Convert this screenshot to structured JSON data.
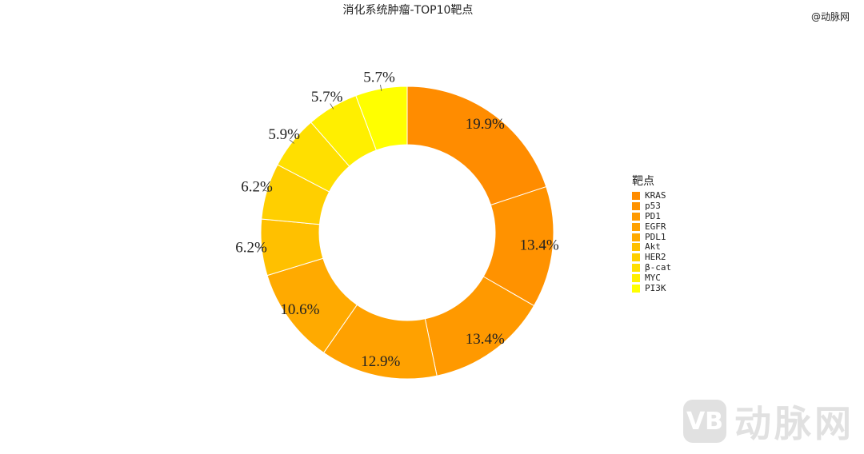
{
  "corner_mark": "@动脉网",
  "watermark": {
    "logo": "VB",
    "text": "动脉网"
  },
  "chart_data": {
    "type": "pie",
    "donut": true,
    "title": "消化系统肿瘤-TOP10靶点",
    "legend_title": "靶点",
    "legend_position": "right",
    "categories": [
      "KRAS",
      "p53",
      "PD1",
      "EGFR",
      "PDL1",
      "Akt",
      "HER2",
      "β-cat",
      "MYC",
      "PI3K"
    ],
    "values": [
      19.9,
      13.4,
      13.4,
      12.9,
      10.6,
      6.2,
      6.2,
      5.9,
      5.7,
      5.7
    ],
    "labels": [
      "19.9%",
      "13.4%",
      "13.4%",
      "12.9%",
      "10.6%",
      "6.2%",
      "6.2%",
      "5.9%",
      "5.7%",
      "5.7%"
    ],
    "colors": [
      "#FF8C00",
      "#FF9200",
      "#FF9900",
      "#FFA100",
      "#FFAA00",
      "#FFC000",
      "#FFCF00",
      "#FFDF00",
      "#FFEF00",
      "#FFFF00"
    ]
  }
}
